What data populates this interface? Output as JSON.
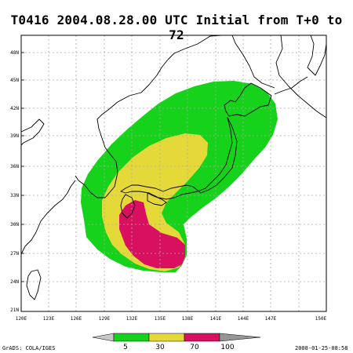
{
  "title": "T0416  2004.08.28.00 UTC Initial from T+0 to 72",
  "map": {
    "lat_labels": [
      "21N",
      "24N",
      "27N",
      "30N",
      "33N",
      "36N",
      "39N",
      "42N",
      "45N",
      "48N"
    ],
    "lon_labels": [
      "120E",
      "123E",
      "126E",
      "129E",
      "132E",
      "135E",
      "138E",
      "141E",
      "144E",
      "147E",
      "150E"
    ],
    "lat_range": [
      20,
      50
    ],
    "lon_range": [
      120,
      150
    ],
    "gridlines": "dashed"
  },
  "probability_regions": [
    {
      "name": "5-30",
      "color": "#17d21b"
    },
    {
      "name": "30-70",
      "color": "#e5d93a"
    },
    {
      "name": "70-100",
      "color": "#d8105f"
    }
  ],
  "colorbar": {
    "labels": [
      "5",
      "30",
      "70",
      "100"
    ],
    "colors": [
      "#c8c8c8",
      "#17d21b",
      "#e5d93a",
      "#d8105f",
      "#969696"
    ]
  },
  "footer": {
    "credit": "GrADS: COLA/IGES",
    "timestamp": "2008-01-25-08:58"
  }
}
